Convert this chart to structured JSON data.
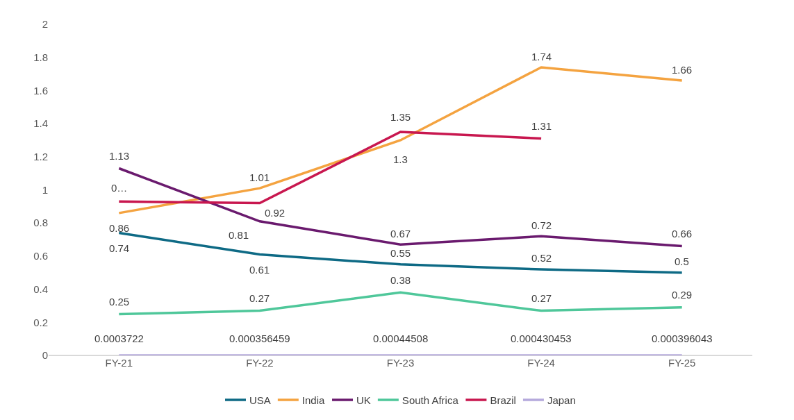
{
  "chart_data": {
    "type": "line",
    "categories": [
      "FY-21",
      "FY-22",
      "FY-23",
      "FY-24",
      "FY-25"
    ],
    "ylim": [
      0,
      2
    ],
    "yticks": [
      0,
      0.2,
      0.4,
      0.6,
      0.8,
      1,
      1.2,
      1.4,
      1.6,
      1.8,
      2
    ],
    "legend": "bottom",
    "marker": "none",
    "line_style": "solid",
    "series": [
      {
        "name": "USA",
        "color": "#0e6a85",
        "values": [
          0.74,
          0.61,
          0.55,
          0.52,
          0.5
        ],
        "value_labels": [
          "0.74",
          "0.61",
          "0.55",
          "0.52",
          "0.5"
        ]
      },
      {
        "name": "India",
        "color": "#f4a340",
        "values": [
          0.86,
          1.01,
          1.3,
          1.74,
          1.66
        ],
        "value_labels": [
          "0.86",
          "1.01",
          "1.3",
          "1.74",
          "1.66"
        ]
      },
      {
        "name": "UK",
        "color": "#6a1a6e",
        "values": [
          1.13,
          0.81,
          0.67,
          0.72,
          0.66
        ],
        "value_labels": [
          "1.13",
          "0.81",
          "0.67",
          "0.72",
          "0.66"
        ]
      },
      {
        "name": "South Africa",
        "color": "#4fc79a",
        "values": [
          0.25,
          0.27,
          0.38,
          0.27,
          0.29
        ],
        "value_labels": [
          "0.25",
          "0.27",
          "0.38",
          "0.27",
          "0.29"
        ]
      },
      {
        "name": "Brazil",
        "color": "#c8174f",
        "values": [
          0.93,
          0.92,
          1.35,
          1.31,
          null
        ],
        "value_labels": [
          "0…",
          "0.92",
          "1.35",
          "1.31",
          null
        ]
      },
      {
        "name": "Japan",
        "color": "#b5a9dc",
        "values": [
          0.0003722,
          0.000356459,
          0.00044508,
          0.000430453,
          0.000396043
        ],
        "value_labels": [
          "0.0003722",
          "0.000356459",
          "0.00044508",
          "0.000430453",
          "0.000396043"
        ]
      }
    ]
  }
}
